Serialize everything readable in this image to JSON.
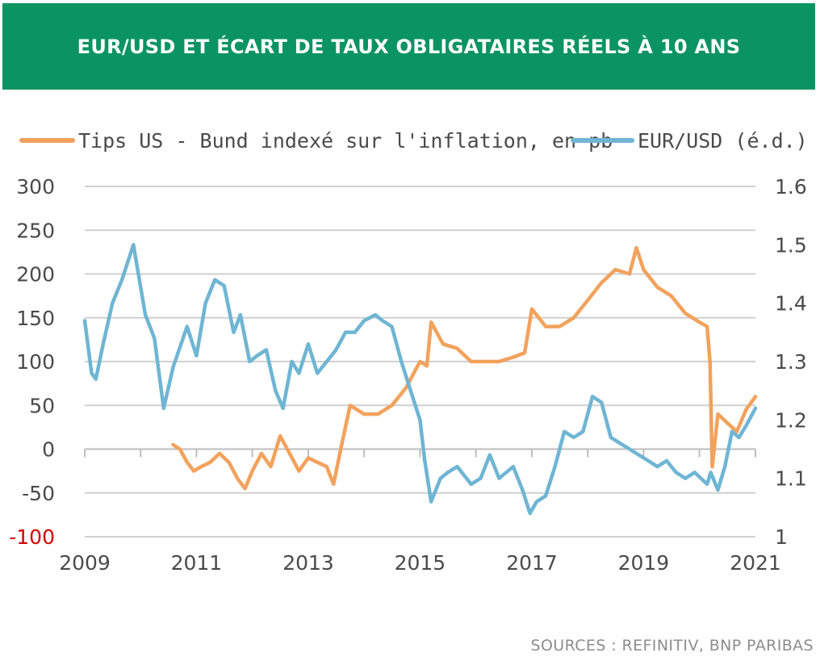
{
  "header": {
    "title": "EUR/USD ET ÉCART DE TAUX OBLIGATAIRES RÉELS À 10 ANS"
  },
  "footer": {
    "source": "SOURCES : REFINITIV, BNP PARIBAS"
  },
  "colors": {
    "spread": "#f2a25c",
    "eurusd": "#6fb5d4",
    "banner": "#0a9463",
    "negative_tick": "#d40000",
    "grid": "#d0d0d0"
  },
  "chart_data": {
    "type": "line",
    "title": "EUR/USD ET ÉCART DE TAUX OBLIGATAIRES RÉELS À 10 ANS",
    "legend_placement": "top",
    "grid": true,
    "x_ticks": [
      "2009",
      "2011",
      "2013",
      "2015",
      "2017",
      "2019",
      "2021"
    ],
    "xlim": [
      "2009-01-01",
      "2021-01-01"
    ],
    "left_axis": {
      "ticks": [
        "300",
        "250",
        "200",
        "150",
        "100",
        "50",
        "0",
        "-50",
        "-100"
      ],
      "ylim": [
        -100,
        300
      ]
    },
    "right_axis": {
      "ticks": [
        "1.6",
        "1.5",
        "1.4",
        "1.3",
        "1.2",
        "1.1",
        "1"
      ],
      "ylim": [
        1.0,
        1.6
      ]
    },
    "series": [
      {
        "name": "Tips US - Bund indexé sur l'inflation, en pb",
        "axis": "left",
        "x": [
          "2010-08-01",
          "2010-09-15",
          "2010-11-01",
          "2010-12-15",
          "2011-02-01",
          "2011-04-01",
          "2011-06-01",
          "2011-08-01",
          "2011-10-01",
          "2011-11-15",
          "2012-01-01",
          "2012-03-01",
          "2012-05-01",
          "2012-07-01",
          "2012-09-01",
          "2012-11-01",
          "2013-01-01",
          "2013-03-01",
          "2013-05-01",
          "2013-06-15",
          "2013-08-01",
          "2013-10-01",
          "2014-01-01",
          "2014-04-01",
          "2014-07-01",
          "2014-10-01",
          "2015-01-01",
          "2015-02-15",
          "2015-03-15",
          "2015-06-01",
          "2015-09-01",
          "2015-12-01",
          "2016-03-01",
          "2016-06-01",
          "2016-09-01",
          "2016-11-15",
          "2017-01-01",
          "2017-04-01",
          "2017-07-01",
          "2017-10-01",
          "2018-01-01",
          "2018-04-01",
          "2018-07-01",
          "2018-10-01",
          "2018-11-15",
          "2019-01-01",
          "2019-04-01",
          "2019-07-01",
          "2019-10-01",
          "2020-01-01",
          "2020-02-20",
          "2020-03-10",
          "2020-03-25",
          "2020-05-01",
          "2020-07-01",
          "2020-09-01",
          "2020-11-01",
          "2021-01-01"
        ],
        "values": [
          5,
          0,
          -15,
          -25,
          -20,
          -15,
          -5,
          -15,
          -35,
          -45,
          -25,
          -5,
          -20,
          15,
          -5,
          -25,
          -10,
          -15,
          -20,
          -40,
          0,
          50,
          40,
          40,
          50,
          70,
          100,
          95,
          145,
          120,
          115,
          100,
          100,
          100,
          105,
          110,
          160,
          140,
          140,
          150,
          170,
          190,
          205,
          200,
          230,
          205,
          185,
          175,
          155,
          145,
          140,
          100,
          -20,
          40,
          30,
          20,
          45,
          60
        ]
      },
      {
        "name": "EUR/USD (é.d.)",
        "axis": "right",
        "x": [
          "2009-01-01",
          "2009-02-15",
          "2009-03-15",
          "2009-05-01",
          "2009-07-01",
          "2009-09-01",
          "2009-11-15",
          "2010-02-01",
          "2010-04-01",
          "2010-06-01",
          "2010-08-01",
          "2010-11-01",
          "2011-01-01",
          "2011-03-01",
          "2011-05-01",
          "2011-07-01",
          "2011-09-01",
          "2011-10-15",
          "2011-12-15",
          "2012-02-01",
          "2012-04-01",
          "2012-06-01",
          "2012-07-20",
          "2012-09-15",
          "2012-11-01",
          "2013-01-01",
          "2013-03-01",
          "2013-05-01",
          "2013-07-01",
          "2013-09-01",
          "2013-11-01",
          "2014-01-01",
          "2014-03-15",
          "2014-05-01",
          "2014-07-01",
          "2014-09-01",
          "2014-11-01",
          "2015-01-01",
          "2015-02-01",
          "2015-03-15",
          "2015-05-15",
          "2015-07-01",
          "2015-09-01",
          "2015-12-01",
          "2016-02-01",
          "2016-04-01",
          "2016-06-01",
          "2016-09-01",
          "2016-11-01",
          "2016-12-20",
          "2017-02-01",
          "2017-04-01",
          "2017-06-01",
          "2017-08-01",
          "2017-10-01",
          "2017-12-01",
          "2018-02-01",
          "2018-04-01",
          "2018-06-01",
          "2018-08-01",
          "2018-10-01",
          "2018-12-01",
          "2019-02-01",
          "2019-04-01",
          "2019-06-01",
          "2019-08-01",
          "2019-10-01",
          "2019-12-01",
          "2020-02-20",
          "2020-03-15",
          "2020-05-01",
          "2020-06-15",
          "2020-08-01",
          "2020-09-15",
          "2020-11-01",
          "2021-01-01"
        ],
        "values": [
          1.37,
          1.28,
          1.27,
          1.33,
          1.4,
          1.44,
          1.5,
          1.38,
          1.34,
          1.22,
          1.29,
          1.36,
          1.31,
          1.4,
          1.44,
          1.43,
          1.35,
          1.38,
          1.3,
          1.31,
          1.32,
          1.25,
          1.22,
          1.3,
          1.28,
          1.33,
          1.28,
          1.3,
          1.32,
          1.35,
          1.35,
          1.37,
          1.38,
          1.37,
          1.36,
          1.3,
          1.25,
          1.2,
          1.13,
          1.06,
          1.1,
          1.11,
          1.12,
          1.09,
          1.1,
          1.14,
          1.1,
          1.12,
          1.08,
          1.04,
          1.06,
          1.07,
          1.12,
          1.18,
          1.17,
          1.18,
          1.24,
          1.23,
          1.17,
          1.16,
          1.15,
          1.14,
          1.13,
          1.12,
          1.13,
          1.11,
          1.1,
          1.11,
          1.09,
          1.11,
          1.08,
          1.12,
          1.18,
          1.17,
          1.19,
          1.22
        ]
      }
    ]
  }
}
